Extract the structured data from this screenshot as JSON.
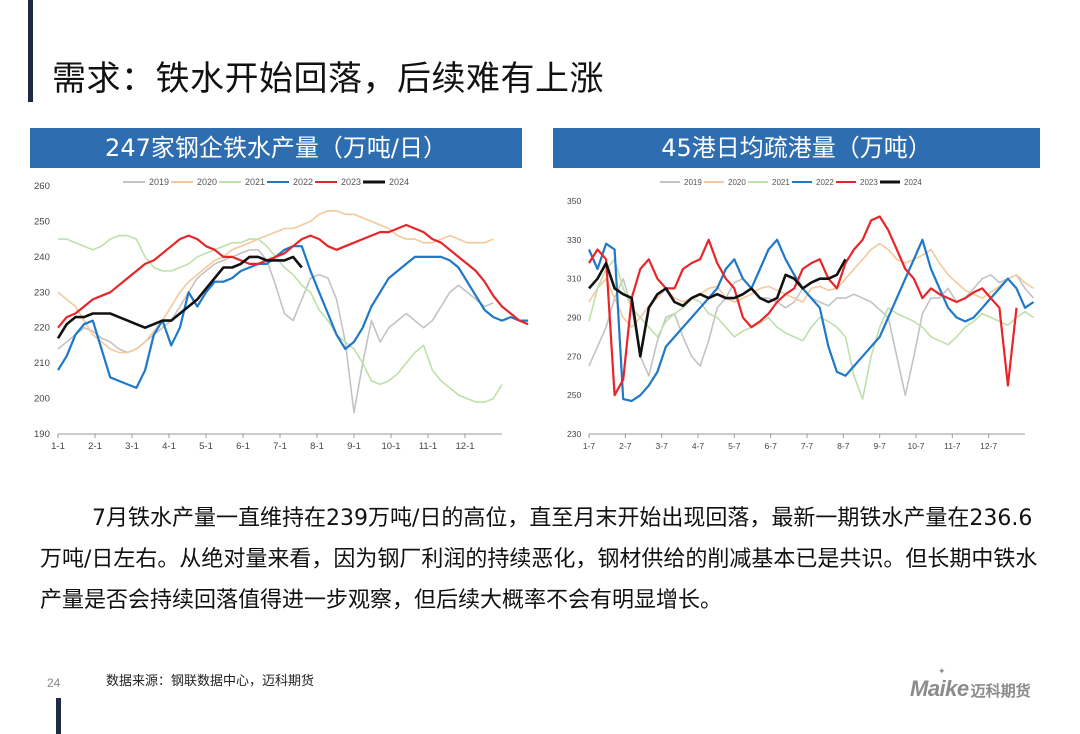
{
  "page": {
    "title": "需求：铁水开始回落，后续难有上涨",
    "body_text": "7月铁水产量一直维持在239万吨/日的高位，直至月末开始出现回落，最新一期铁水产量在236.6万吨/日左右。从绝对量来看，因为钢厂利润的持续恶化，钢材供给的削减基本已是共识。但长期中铁水产量是否会持续回落值得进一步观察，但后续大概率不会有明显增长。",
    "source": "数据来源：钢联数据中心，迈科期货",
    "page_number": "24",
    "logo_text": "Maike",
    "logo_cn": "迈科期货"
  },
  "colors": {
    "header_bg": "#2e6db0",
    "bar": "#1f2a44",
    "2019": "#c3c3c3",
    "2020": "#f4c99b",
    "2021": "#bfe0a8",
    "2022": "#1f78c8",
    "2023": "#e8262a",
    "2024": "#111111"
  },
  "chart_data": [
    {
      "type": "line",
      "title": "247家钢企铁水产量（万吨/日）",
      "ylim": [
        190,
        260
      ],
      "yticks": [
        190,
        200,
        210,
        220,
        230,
        240,
        250,
        260
      ],
      "xticklabels": [
        "1-1",
        "2-1",
        "3-1",
        "4-1",
        "5-1",
        "6-1",
        "7-1",
        "8-1",
        "9-1",
        "10-1",
        "11-1",
        "12-1"
      ],
      "weeks": 52,
      "legend_position": "top",
      "series": [
        {
          "name": "2019",
          "color": "#c3c3c3",
          "values": [
            214,
            216,
            218,
            220,
            219,
            217,
            216,
            214,
            213,
            214,
            216,
            218,
            220,
            222,
            226,
            230,
            234,
            236,
            238,
            239,
            240,
            241,
            242,
            242,
            239,
            232,
            224,
            222,
            228,
            234,
            235,
            234,
            228,
            216,
            196,
            210,
            222,
            216,
            220,
            222,
            224,
            222,
            220,
            222,
            226,
            230,
            232,
            230,
            228,
            226,
            227
          ]
        },
        {
          "name": "2020",
          "color": "#f4c99b",
          "values": [
            230,
            228,
            226,
            222,
            218,
            216,
            214,
            213,
            213,
            214,
            216,
            219,
            222,
            226,
            230,
            233,
            235,
            237,
            239,
            240,
            242,
            243,
            244,
            245,
            246,
            247,
            248,
            248,
            249,
            250,
            252,
            253,
            253,
            252,
            252,
            251,
            250,
            249,
            248,
            246,
            245,
            245,
            244,
            244,
            245,
            246,
            245,
            244,
            244,
            244,
            245
          ]
        },
        {
          "name": "2021",
          "color": "#bfe0a8",
          "values": [
            245,
            245,
            244,
            243,
            242,
            243,
            245,
            246,
            246,
            245,
            240,
            237,
            236,
            236,
            237,
            238,
            240,
            241,
            242,
            243,
            244,
            244,
            245,
            245,
            243,
            240,
            237,
            235,
            232,
            230,
            225,
            222,
            218,
            216,
            214,
            210,
            205,
            204,
            205,
            207,
            210,
            213,
            215,
            208,
            205,
            203,
            201,
            200,
            199,
            199,
            200,
            204
          ]
        },
        {
          "name": "2022",
          "color": "#1f78c8",
          "values": [
            208,
            212,
            218,
            221,
            222,
            214,
            206,
            205,
            204,
            203,
            208,
            218,
            222,
            215,
            220,
            230,
            226,
            230,
            233,
            233,
            234,
            236,
            237,
            238,
            238,
            240,
            242,
            243,
            243,
            236,
            230,
            224,
            218,
            214,
            216,
            220,
            226,
            230,
            234,
            236,
            238,
            240,
            240,
            240,
            240,
            239,
            237,
            233,
            229,
            225,
            223,
            222,
            223,
            222,
            222
          ]
        },
        {
          "name": "2023",
          "color": "#e8262a",
          "values": [
            220,
            223,
            224,
            226,
            228,
            229,
            230,
            232,
            234,
            236,
            238,
            239,
            241,
            243,
            245,
            246,
            245,
            243,
            242,
            240,
            240,
            239,
            238,
            238,
            239,
            240,
            241,
            243,
            245,
            246,
            245,
            243,
            242,
            243,
            244,
            245,
            246,
            247,
            247,
            248,
            249,
            248,
            247,
            245,
            244,
            242,
            240,
            238,
            236,
            233,
            229,
            226,
            224,
            222,
            221
          ]
        },
        {
          "name": "2024",
          "color": "#111111",
          "values": [
            217,
            221,
            223,
            223,
            224,
            224,
            224,
            223,
            222,
            221,
            220,
            221,
            222,
            222,
            224,
            226,
            228,
            231,
            234,
            237,
            237,
            238,
            240,
            240,
            239,
            239,
            239,
            240,
            237
          ]
        }
      ]
    },
    {
      "type": "line",
      "title": "45港日均疏港量（万吨）",
      "ylim": [
        230,
        350
      ],
      "yticks": [
        230,
        250,
        270,
        290,
        310,
        330,
        350
      ],
      "xticklabels": [
        "1-7",
        "2-7",
        "3-7",
        "4-7",
        "5-7",
        "6-7",
        "7-7",
        "8-7",
        "9-7",
        "10-7",
        "11-7",
        "12-7"
      ],
      "weeks": 52,
      "legend_position": "top",
      "series": [
        {
          "name": "2019",
          "color": "#c3c3c3",
          "values": [
            265,
            275,
            285,
            300,
            310,
            295,
            270,
            260,
            278,
            290,
            292,
            280,
            270,
            265,
            278,
            295,
            300,
            308,
            310,
            305,
            300,
            300,
            298,
            295,
            298,
            305,
            300,
            298,
            296,
            300,
            300,
            302,
            300,
            298,
            294,
            290,
            270,
            250,
            270,
            292,
            300,
            300,
            305,
            298,
            300,
            305,
            310,
            312,
            308,
            310,
            312,
            305,
            300
          ]
        },
        {
          "name": "2020",
          "color": "#f4c99b",
          "values": [
            298,
            305,
            310,
            300,
            290,
            285,
            290,
            296,
            300,
            305,
            300,
            298,
            300,
            302,
            305,
            306,
            300,
            298,
            300,
            302,
            305,
            306,
            304,
            302,
            300,
            298,
            305,
            306,
            304,
            305,
            310,
            315,
            320,
            325,
            328,
            325,
            320,
            318,
            320,
            322,
            325,
            318,
            312,
            308,
            304,
            302,
            300,
            303,
            306,
            310,
            312,
            308,
            305
          ]
        },
        {
          "name": "2021",
          "color": "#bfe0a8",
          "values": [
            288,
            305,
            315,
            320,
            305,
            295,
            290,
            285,
            280,
            288,
            292,
            295,
            300,
            298,
            292,
            290,
            285,
            280,
            283,
            285,
            287,
            290,
            285,
            282,
            280,
            278,
            285,
            290,
            288,
            285,
            280,
            260,
            248,
            270,
            285,
            295,
            292,
            290,
            288,
            285,
            280,
            278,
            276,
            280,
            285,
            288,
            292,
            290,
            288,
            286,
            290,
            293,
            290
          ]
        },
        {
          "name": "2022",
          "color": "#1f78c8",
          "values": [
            325,
            315,
            328,
            325,
            248,
            247,
            250,
            255,
            262,
            275,
            280,
            285,
            290,
            295,
            300,
            305,
            315,
            320,
            310,
            305,
            315,
            325,
            330,
            320,
            312,
            305,
            300,
            295,
            275,
            262,
            260,
            265,
            270,
            275,
            280,
            290,
            300,
            310,
            320,
            330,
            315,
            305,
            295,
            290,
            288,
            290,
            295,
            300,
            305,
            310,
            305,
            295,
            298
          ]
        },
        {
          "name": "2023",
          "color": "#e8262a",
          "values": [
            318,
            325,
            320,
            250,
            258,
            300,
            315,
            320,
            310,
            305,
            305,
            315,
            318,
            320,
            330,
            318,
            310,
            305,
            290,
            285,
            288,
            292,
            298,
            302,
            305,
            315,
            318,
            320,
            310,
            305,
            318,
            325,
            330,
            340,
            342,
            335,
            325,
            315,
            310,
            300,
            305,
            302,
            300,
            298,
            300,
            303,
            305,
            300,
            295,
            255,
            295
          ]
        },
        {
          "name": "2024",
          "color": "#111111",
          "values": [
            305,
            310,
            318,
            305,
            302,
            300,
            270,
            295,
            302,
            305,
            298,
            296,
            300,
            302,
            300,
            302,
            300,
            300,
            302,
            305,
            300,
            298,
            300,
            312,
            310,
            305,
            308,
            310,
            310,
            312,
            320
          ]
        }
      ]
    }
  ]
}
